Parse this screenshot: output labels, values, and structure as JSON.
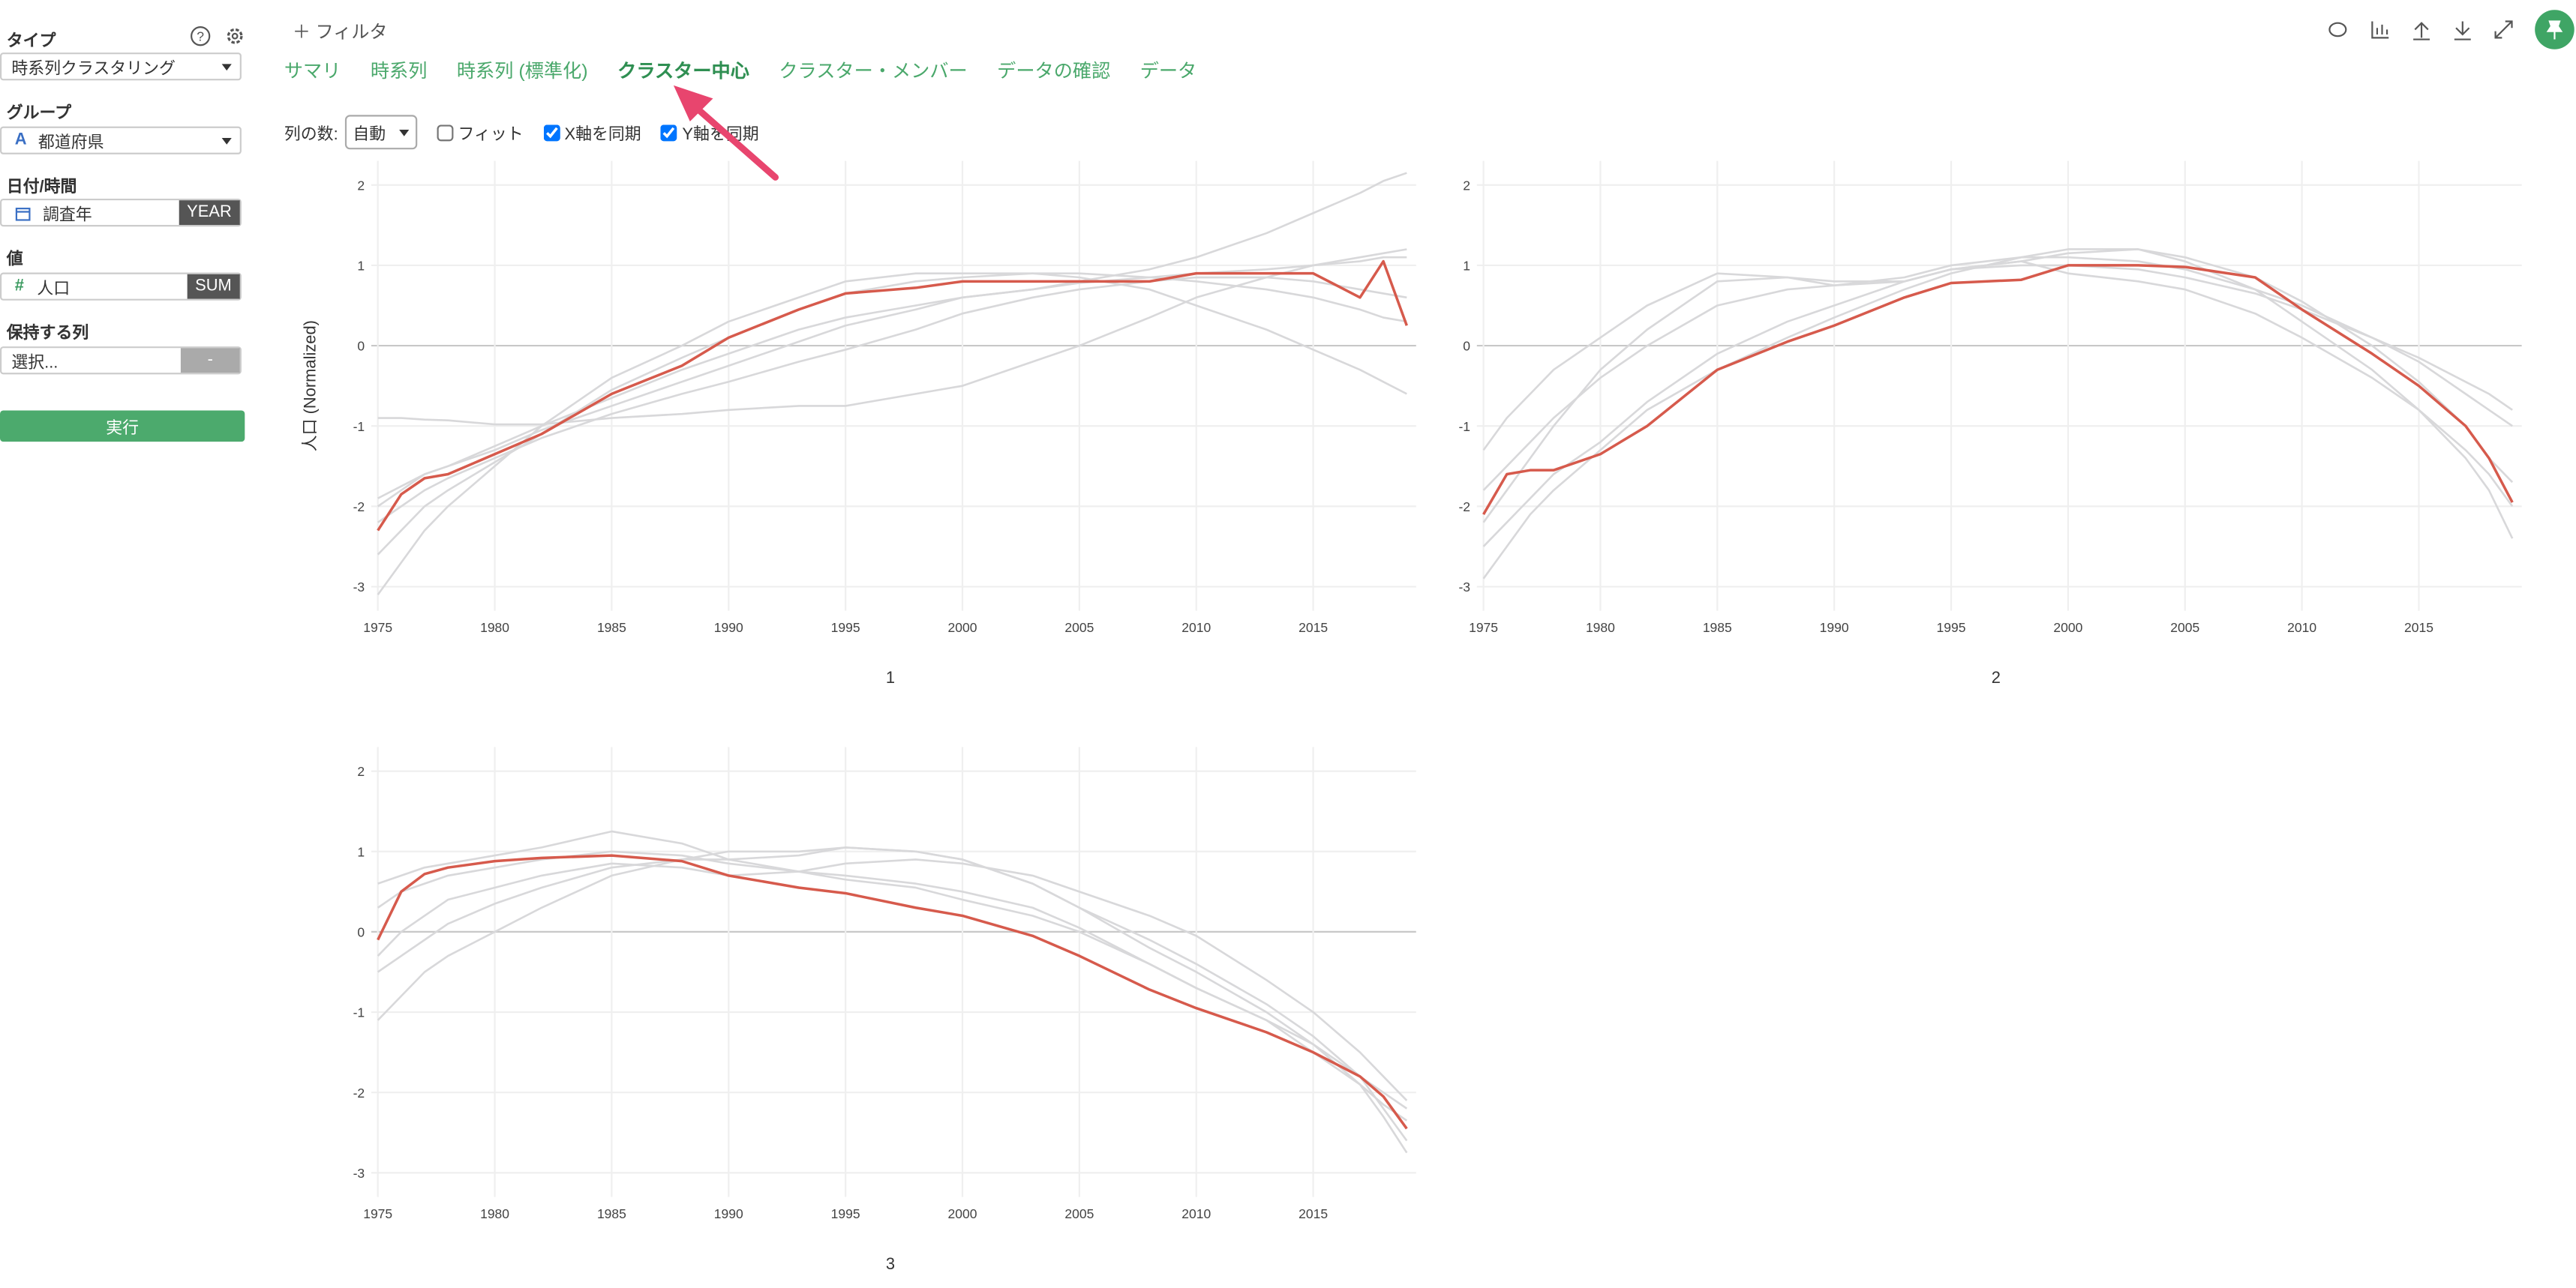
{
  "sidebar": {
    "type_label": "タイプ",
    "type_value": "時系列クラスタリング",
    "group_label": "グループ",
    "group_icon": "A",
    "group_value": "都道府県",
    "date_label": "日付/時間",
    "date_value": "調査年",
    "date_unit": "YEAR",
    "value_label": "値",
    "value_icon": "#",
    "value_value": "人口",
    "value_agg": "SUM",
    "keep_label": "保持する列",
    "keep_value": "選択...",
    "keep_button": "-",
    "run_button": "実行"
  },
  "toolbar": {
    "filter": "フィルタ",
    "tabs": [
      "サマリ",
      "時系列",
      "時系列 (標準化)",
      "クラスター中心",
      "クラスター・メンバー",
      "データの確認",
      "データ"
    ],
    "active_tab": 3,
    "columns_label": "列の数:",
    "columns_value": "自動",
    "options": [
      {
        "label": "フィット",
        "checked": false
      },
      {
        "label": "X軸を同期",
        "checked": true
      },
      {
        "label": "Y軸を同期",
        "checked": true
      }
    ]
  },
  "chart_data": [
    {
      "type": "line",
      "title": "1",
      "y_label": "人口 (Normalized)",
      "x": [
        1975,
        1976,
        1977,
        1978,
        1980,
        1982,
        1985,
        1988,
        1990,
        1993,
        1995,
        1998,
        2000,
        2003,
        2005,
        2008,
        2010,
        2013,
        2015,
        2017,
        2018,
        2019
      ],
      "series": [
        {
          "color": "#d8d8da",
          "values": [
            -0.9,
            -0.9,
            -0.92,
            -0.93,
            -0.98,
            -0.98,
            -0.9,
            -0.85,
            -0.8,
            -0.75,
            -0.75,
            -0.6,
            -0.5,
            -0.2,
            0.0,
            0.35,
            0.6,
            0.85,
            1.0,
            1.1,
            1.15,
            1.2
          ]
        },
        {
          "color": "#d8d8da",
          "values": [
            -2.0,
            -1.8,
            -1.6,
            -1.5,
            -1.25,
            -1.0,
            -0.65,
            -0.3,
            -0.1,
            0.2,
            0.35,
            0.5,
            0.6,
            0.7,
            0.8,
            0.95,
            1.1,
            1.4,
            1.65,
            1.9,
            2.05,
            2.15
          ]
        },
        {
          "color": "#d8d8da",
          "values": [
            -3.1,
            -2.7,
            -2.3,
            -2.0,
            -1.5,
            -1.0,
            -0.4,
            0.0,
            0.3,
            0.6,
            0.8,
            0.9,
            0.9,
            0.9,
            0.85,
            0.7,
            0.5,
            0.2,
            -0.05,
            -0.3,
            -0.45,
            -0.6
          ]
        },
        {
          "color": "#d8d8da",
          "values": [
            -1.9,
            -1.75,
            -1.6,
            -1.5,
            -1.3,
            -1.05,
            -0.75,
            -0.45,
            -0.25,
            0.05,
            0.25,
            0.45,
            0.6,
            0.7,
            0.78,
            0.85,
            0.9,
            0.95,
            1.0,
            1.05,
            1.1,
            1.1
          ]
        },
        {
          "color": "#d8d8da",
          "values": [
            -2.6,
            -2.3,
            -2.0,
            -1.8,
            -1.45,
            -1.1,
            -0.55,
            -0.15,
            0.1,
            0.45,
            0.65,
            0.8,
            0.85,
            0.9,
            0.9,
            0.85,
            0.8,
            0.7,
            0.6,
            0.45,
            0.35,
            0.3
          ]
        },
        {
          "color": "#d8d8da",
          "values": [
            -2.2,
            -2.0,
            -1.8,
            -1.65,
            -1.4,
            -1.15,
            -0.85,
            -0.6,
            -0.45,
            -0.2,
            -0.05,
            0.2,
            0.4,
            0.6,
            0.7,
            0.8,
            0.85,
            0.85,
            0.8,
            0.7,
            0.65,
            0.6
          ]
        },
        {
          "color": "#d65a4c",
          "values": [
            -2.3,
            -1.85,
            -1.65,
            -1.6,
            -1.35,
            -1.1,
            -0.6,
            -0.25,
            0.1,
            0.45,
            0.65,
            0.72,
            0.8,
            0.8,
            0.8,
            0.8,
            0.9,
            0.9,
            0.9,
            0.6,
            1.05,
            0.25
          ]
        }
      ],
      "xlim": [
        1975,
        2019.4
      ],
      "ylim": [
        -3.3,
        2.3
      ],
      "xticks": [
        1975,
        1980,
        1985,
        1990,
        1995,
        2000,
        2005,
        2010,
        2015
      ],
      "yticks": [
        -3,
        -2,
        -1,
        0,
        1,
        2
      ],
      "grid": true,
      "zeroline": true
    },
    {
      "type": "line",
      "title": "2",
      "x": [
        1975,
        1976,
        1977,
        1978,
        1980,
        1982,
        1985,
        1988,
        1990,
        1993,
        1995,
        1998,
        2000,
        2003,
        2005,
        2008,
        2010,
        2013,
        2015,
        2017,
        2018,
        2019
      ],
      "series": [
        {
          "color": "#d8d8da",
          "values": [
            -1.3,
            -0.9,
            -0.6,
            -0.3,
            0.1,
            0.5,
            0.9,
            0.85,
            0.8,
            0.8,
            0.95,
            1.0,
            1.0,
            0.95,
            0.85,
            0.65,
            0.45,
            0.1,
            -0.15,
            -0.45,
            -0.6,
            -0.8
          ]
        },
        {
          "color": "#d8d8da",
          "values": [
            -2.9,
            -2.5,
            -2.1,
            -1.8,
            -1.3,
            -0.8,
            -0.3,
            0.1,
            0.35,
            0.7,
            0.9,
            1.1,
            1.2,
            1.2,
            1.05,
            0.7,
            0.3,
            -0.3,
            -0.8,
            -1.4,
            -1.8,
            -2.4
          ]
        },
        {
          "color": "#d8d8da",
          "values": [
            -1.8,
            -1.5,
            -1.2,
            -0.9,
            -0.4,
            0.0,
            0.5,
            0.7,
            0.75,
            0.85,
            1.0,
            1.1,
            1.1,
            1.05,
            0.95,
            0.7,
            0.5,
            0.1,
            -0.2,
            -0.6,
            -0.8,
            -1.0
          ]
        },
        {
          "color": "#d8d8da",
          "values": [
            -2.5,
            -2.2,
            -1.9,
            -1.6,
            -1.2,
            -0.7,
            -0.1,
            0.3,
            0.5,
            0.8,
            0.95,
            1.05,
            1.15,
            1.2,
            1.1,
            0.85,
            0.55,
            0.0,
            -0.45,
            -1.0,
            -1.4,
            -1.7
          ]
        },
        {
          "color": "#d8d8da",
          "values": [
            -2.2,
            -1.8,
            -1.4,
            -1.0,
            -0.3,
            0.2,
            0.8,
            0.85,
            0.75,
            0.8,
            0.95,
            1.05,
            0.9,
            0.8,
            0.7,
            0.4,
            0.1,
            -0.4,
            -0.8,
            -1.3,
            -1.6,
            -2.0
          ]
        },
        {
          "color": "#d65a4c",
          "values": [
            -2.1,
            -1.6,
            -1.55,
            -1.55,
            -1.35,
            -1.0,
            -0.3,
            0.05,
            0.25,
            0.6,
            0.78,
            0.82,
            1.0,
            1.0,
            0.98,
            0.85,
            0.45,
            -0.1,
            -0.5,
            -1.0,
            -1.4,
            -1.95
          ]
        }
      ],
      "xlim": [
        1975,
        2019.4
      ],
      "ylim": [
        -3.3,
        2.3
      ],
      "xticks": [
        1975,
        1980,
        1985,
        1990,
        1995,
        2000,
        2005,
        2010,
        2015
      ],
      "yticks": [
        -3,
        -2,
        -1,
        0,
        1,
        2
      ],
      "grid": true,
      "zeroline": true
    },
    {
      "type": "line",
      "title": "3",
      "x": [
        1975,
        1976,
        1977,
        1978,
        1980,
        1982,
        1985,
        1988,
        1990,
        1993,
        1995,
        1998,
        2000,
        2003,
        2005,
        2008,
        2010,
        2013,
        2015,
        2017,
        2018,
        2019
      ],
      "series": [
        {
          "color": "#d8d8da",
          "values": [
            -1.1,
            -0.8,
            -0.5,
            -0.3,
            0.0,
            0.3,
            0.7,
            0.9,
            1.0,
            1.0,
            1.05,
            1.0,
            0.9,
            0.6,
            0.3,
            -0.1,
            -0.4,
            -0.9,
            -1.3,
            -1.8,
            -2.2,
            -2.6
          ]
        },
        {
          "color": "#d8d8da",
          "values": [
            0.6,
            0.7,
            0.8,
            0.85,
            0.95,
            1.05,
            1.25,
            1.1,
            0.9,
            0.75,
            0.65,
            0.55,
            0.4,
            0.2,
            0.0,
            -0.4,
            -0.7,
            -1.1,
            -1.4,
            -1.8,
            -2.0,
            -2.2
          ]
        },
        {
          "color": "#d8d8da",
          "values": [
            -0.5,
            -0.3,
            -0.1,
            0.1,
            0.35,
            0.55,
            0.8,
            0.9,
            0.9,
            0.95,
            1.05,
            1.0,
            0.9,
            0.6,
            0.3,
            -0.2,
            -0.5,
            -1.0,
            -1.4,
            -1.9,
            -2.3,
            -2.75
          ]
        },
        {
          "color": "#d8d8da",
          "values": [
            0.3,
            0.5,
            0.6,
            0.7,
            0.8,
            0.9,
            1.0,
            0.95,
            0.85,
            0.75,
            0.7,
            0.6,
            0.5,
            0.3,
            0.05,
            -0.4,
            -0.7,
            -1.1,
            -1.5,
            -1.9,
            -2.15,
            -2.35
          ]
        },
        {
          "color": "#d8d8da",
          "values": [
            -0.3,
            0.0,
            0.2,
            0.4,
            0.55,
            0.7,
            0.85,
            0.8,
            0.7,
            0.75,
            0.85,
            0.9,
            0.85,
            0.7,
            0.5,
            0.2,
            -0.05,
            -0.6,
            -1.0,
            -1.5,
            -1.8,
            -2.1
          ]
        },
        {
          "color": "#d65a4c",
          "values": [
            -0.1,
            0.5,
            0.72,
            0.8,
            0.88,
            0.92,
            0.95,
            0.88,
            0.7,
            0.55,
            0.48,
            0.3,
            0.2,
            -0.05,
            -0.3,
            -0.72,
            -0.95,
            -1.25,
            -1.5,
            -1.8,
            -2.05,
            -2.45
          ]
        }
      ],
      "xlim": [
        1975,
        2019.4
      ],
      "ylim": [
        -3.3,
        2.3
      ],
      "xticks": [
        1975,
        1980,
        1985,
        1990,
        1995,
        2000,
        2005,
        2010,
        2015
      ],
      "yticks": [
        -3,
        -2,
        -1,
        0,
        1,
        2
      ],
      "grid": true,
      "zeroline": true
    }
  ]
}
